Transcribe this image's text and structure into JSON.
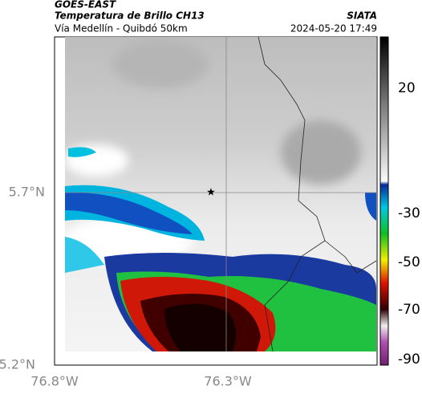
{
  "header": {
    "satellite": "GOES-EAST",
    "product": "Temperatura de Brillo CH13",
    "route": "Vía Medellín - Quibdó 50km",
    "source": "SIATA",
    "datetime": "2024-05-20 17:49"
  },
  "axes": {
    "lat_labels": [
      "5.7°N",
      "5.2°N"
    ],
    "lon_labels": [
      "76.8°W",
      "76.3°W"
    ]
  },
  "colorbar": {
    "ticks": [
      "20",
      "-30",
      "-50",
      "-70",
      "-90"
    ]
  }
}
